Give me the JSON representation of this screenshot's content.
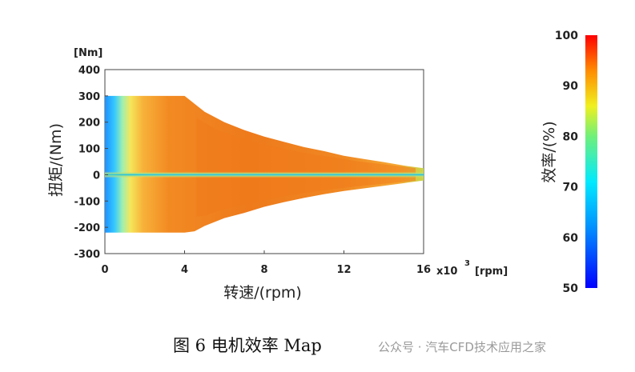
{
  "chart_data": {
    "type": "heatmap",
    "title": "",
    "xlabel": "转速/(rpm)",
    "ylabel": "扭矩/(Nm)",
    "y_unit": "[Nm]",
    "x_multiplier": "x10",
    "x_multiplier_exp": "3",
    "x_unit": "[rpm]",
    "xlim": [
      0,
      16
    ],
    "ylim": [
      -300,
      400
    ],
    "x_ticks": [
      "0",
      "4",
      "8",
      "12",
      "16"
    ],
    "y_ticks": [
      "400",
      "300",
      "200",
      "100",
      "0",
      "-100",
      "-200",
      "-300"
    ],
    "colorbar": {
      "label": "效率/(%)",
      "range": [
        50,
        100
      ],
      "ticks": [
        "100",
        "90",
        "80",
        "70",
        "60",
        "50"
      ]
    },
    "envelope_x_krpm": [
      0,
      4,
      4.5,
      5,
      6,
      7,
      8,
      9,
      10,
      11,
      12,
      13,
      14,
      15,
      16
    ],
    "envelope_upper_nm": [
      300,
      300,
      270,
      240,
      200,
      170,
      145,
      125,
      105,
      90,
      72,
      60,
      48,
      35,
      25
    ],
    "envelope_lower_nm": [
      -220,
      -220,
      -215,
      -195,
      -165,
      -145,
      -122,
      -104,
      -88,
      -74,
      -62,
      -52,
      -42,
      -32,
      -22
    ],
    "efficiency_levels": [
      {
        "region": "low-speed edge",
        "value": 60
      },
      {
        "region": "near-zero torque band",
        "value": 70
      },
      {
        "region": "low speed transition",
        "value": 88
      },
      {
        "region": "high-efficiency core",
        "value": 95
      }
    ]
  },
  "caption": "图 6  电机效率 Map",
  "watermark": "公众号 · 汽车CFD技术应用之家",
  "colors": {
    "low": "#0000ff",
    "mid": "#00e5ff",
    "high": "#ff1a00",
    "core": "#f07a1a"
  }
}
